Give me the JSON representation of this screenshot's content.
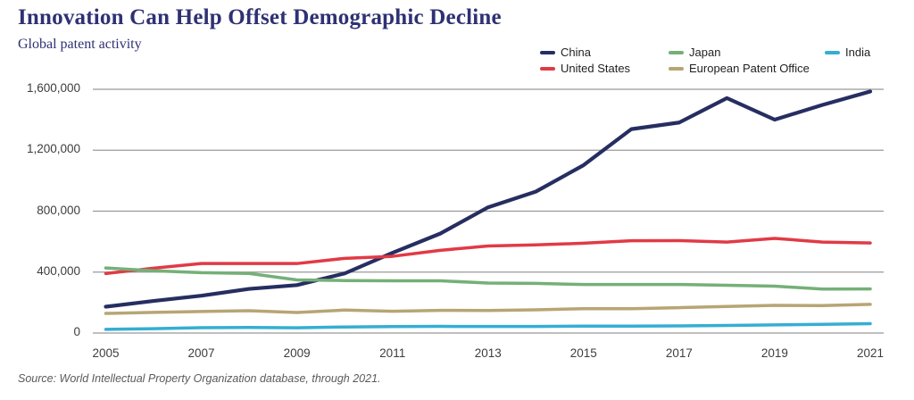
{
  "title": "Innovation Can Help Offset Demographic Decline",
  "subtitle": "Global patent activity",
  "source": "Source: World Intellectual Property Organization database, through 2021.",
  "colors": {
    "title_text": "#2e3173",
    "gridline": "#999999",
    "tick_text": "#3d3d3d",
    "legend_text": "#1f1f1f",
    "source_text": "#595a5c",
    "background": "#ffffff"
  },
  "chart_data": {
    "type": "line",
    "title": "Global patent activity",
    "x": [
      2005,
      2006,
      2007,
      2008,
      2009,
      2010,
      2011,
      2012,
      2013,
      2014,
      2015,
      2016,
      2017,
      2018,
      2019,
      2020,
      2021
    ],
    "x_tick_labels": [
      "2005",
      "2007",
      "2009",
      "2011",
      "2013",
      "2015",
      "2017",
      "2019",
      "2021"
    ],
    "yticks": [
      0,
      400000,
      800000,
      1200000,
      1600000
    ],
    "ytick_labels": [
      "0",
      "400,000",
      "800,000",
      "1,200,000",
      "1,600,000"
    ],
    "ylim": [
      0,
      1600000
    ],
    "grid": "horizontal",
    "legend_position": "top-right",
    "series": [
      {
        "name": "China",
        "color": "#262e61",
        "values": [
          173000,
          210500,
          245200,
          289800,
          314600,
          391200,
          526400,
          652800,
          825100,
          928200,
          1101900,
          1338500,
          1381600,
          1542000,
          1400700,
          1497200,
          1585700
        ]
      },
      {
        "name": "United States",
        "color": "#e13a45",
        "values": [
          390700,
          425900,
          456200,
          456300,
          456100,
          490200,
          503600,
          542800,
          571600,
          578800,
          589400,
          605600,
          606900,
          597100,
          621500,
          597200,
          591500
        ]
      },
      {
        "name": "Japan",
        "color": "#74b077",
        "values": [
          427100,
          408700,
          396300,
          391000,
          348600,
          344600,
          342600,
          342800,
          328400,
          325900,
          318700,
          318400,
          318500,
          313600,
          307900,
          288500,
          289200
        ]
      },
      {
        "name": "European Patent Office",
        "color": "#b7a573",
        "values": [
          128700,
          135400,
          141300,
          146600,
          134600,
          151000,
          142800,
          148600,
          148000,
          152700,
          160000,
          159400,
          166600,
          174400,
          181500,
          180300,
          188600
        ]
      },
      {
        "name": "India",
        "color": "#35aed3",
        "values": [
          24400,
          28900,
          35200,
          36800,
          34300,
          39800,
          42300,
          43700,
          43000,
          42900,
          45700,
          45100,
          46600,
          50100,
          53600,
          56800,
          61600
        ]
      }
    ],
    "legend_columns": [
      [
        "China",
        "United States"
      ],
      [
        "Japan",
        "European Patent Office"
      ],
      [
        "India"
      ]
    ]
  }
}
